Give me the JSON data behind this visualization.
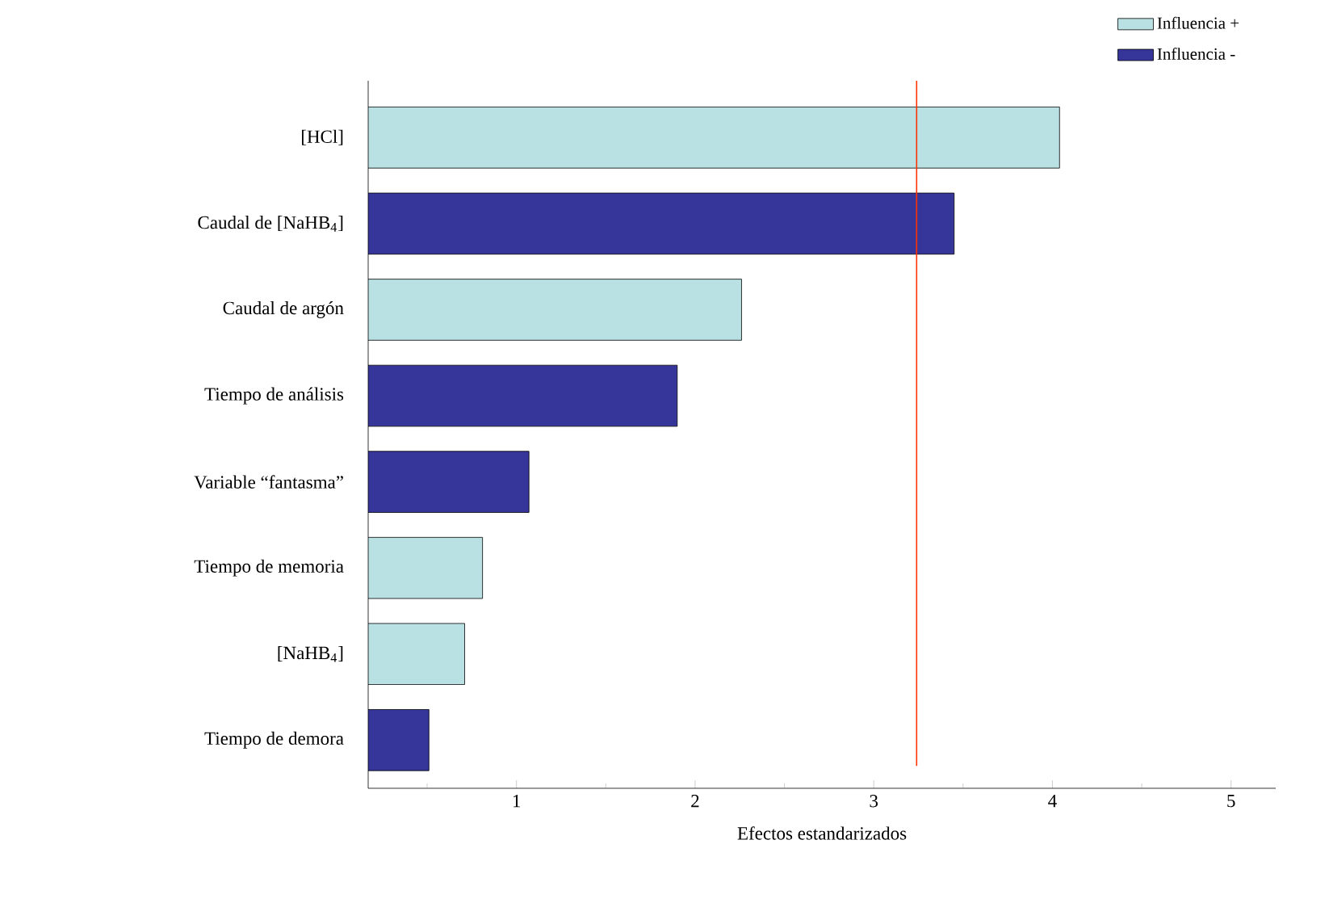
{
  "chart_data": {
    "type": "bar",
    "orientation": "horizontal",
    "xlabel": "Efectos estandarizados",
    "categories": [
      "[HCl]",
      "Caudal de [NaHB$_{4}$]",
      "Caudal de argón",
      "Tiempo de análisis",
      "Variable “fantasma”",
      "Tiempo de memoria",
      "[NaHB$_{4}$]",
      "Tiempo de demora"
    ],
    "series": [
      {
        "name": "Influencia +",
        "color": "#b9e0e2",
        "values": [
          4.04,
          null,
          2.26,
          null,
          null,
          0.81,
          0.71,
          null
        ]
      },
      {
        "name": "Influencia -",
        "color": "#363599",
        "values": [
          null,
          3.45,
          null,
          1.9,
          1.07,
          null,
          null,
          0.51
        ]
      }
    ],
    "xlim": [
      0.17,
      5.25
    ],
    "xticks": [
      {
        "value": 0.5,
        "label": null
      },
      1,
      {
        "value": 1.5,
        "label": null
      },
      2,
      {
        "value": 2.5,
        "label": null
      },
      3,
      {
        "value": 3.5,
        "label": null
      },
      4,
      {
        "value": 4.5,
        "label": null
      },
      5
    ],
    "ref_lines": [
      {
        "axis": "x",
        "value": 3.24,
        "color": "#ff3300"
      }
    ],
    "legend": "top right",
    "grid": false
  }
}
